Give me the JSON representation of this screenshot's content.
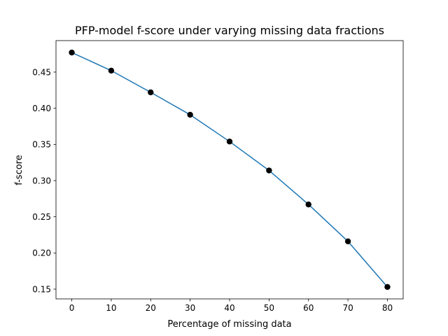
{
  "chart_data": {
    "type": "line",
    "title": "PFP-model f-score under varying missing data fractions",
    "xlabel": "Percentage of missing data",
    "ylabel": "f-score",
    "x": [
      0,
      10,
      20,
      30,
      40,
      50,
      60,
      70,
      80
    ],
    "series": [
      {
        "values": [
          0.477,
          0.452,
          0.422,
          0.391,
          0.354,
          0.314,
          0.267,
          0.216,
          0.153
        ],
        "line_color": "#1f77b4",
        "marker_color": "#000000",
        "marker": "circle"
      }
    ],
    "xlim": [
      -4,
      84
    ],
    "ylim": [
      0.1365,
      0.4935
    ],
    "xticks": [
      0,
      10,
      20,
      30,
      40,
      50,
      60,
      70,
      80
    ],
    "xtick_labels": [
      "0",
      "10",
      "20",
      "30",
      "40",
      "50",
      "60",
      "70",
      "80"
    ],
    "yticks": [
      0.15,
      0.2,
      0.25,
      0.3,
      0.35,
      0.4,
      0.45
    ],
    "ytick_labels": [
      "0.15",
      "0.20",
      "0.25",
      "0.30",
      "0.35",
      "0.40",
      "0.45"
    ],
    "grid": false,
    "legend": "none"
  }
}
